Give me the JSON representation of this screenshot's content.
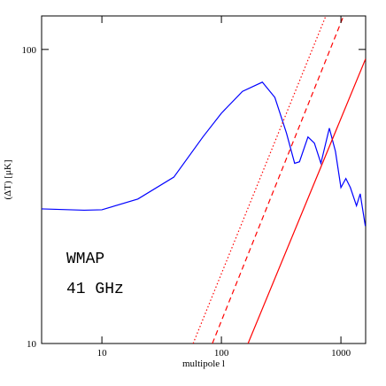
{
  "chart_data": {
    "type": "line",
    "xlabel": "multipole l",
    "ylabel": "(ΔT) [μK]",
    "xscale": "log",
    "yscale": "log",
    "xlim": [
      3.13,
      1610
    ],
    "ylim": [
      10,
      130
    ],
    "xticks": [
      10,
      100,
      1000
    ],
    "yticks": [
      10,
      100
    ],
    "annotations": [
      "WMAP",
      "41 GHz"
    ],
    "series": [
      {
        "color": "#0000ff",
        "style": "solid",
        "x": [
          3.13,
          7.1,
          10,
          20,
          40,
          70,
          100,
          150,
          220,
          280,
          350,
          410,
          450,
          530,
          600,
          680,
          800,
          900,
          1000,
          1100,
          1200,
          1350,
          1450,
          1600
        ],
        "values": [
          28.7,
          28.4,
          28.5,
          31,
          36.8,
          50.4,
          60.7,
          72,
          77.4,
          68.7,
          52,
          41,
          41.5,
          50.4,
          48,
          41,
          54,
          45,
          33.9,
          36.4,
          33.9,
          29.4,
          32.3,
          25.1
        ]
      },
      {
        "color": "#ff0000",
        "style": "solid",
        "x": [
          167,
          1610
        ],
        "values": [
          10,
          93
        ]
      },
      {
        "color": "#ff0000",
        "style": "dashed",
        "x": [
          84,
          1052
        ],
        "values": [
          10,
          130
        ]
      },
      {
        "color": "#ff0000",
        "style": "dotted",
        "x": [
          58,
          748
        ],
        "values": [
          10,
          130
        ]
      }
    ]
  }
}
